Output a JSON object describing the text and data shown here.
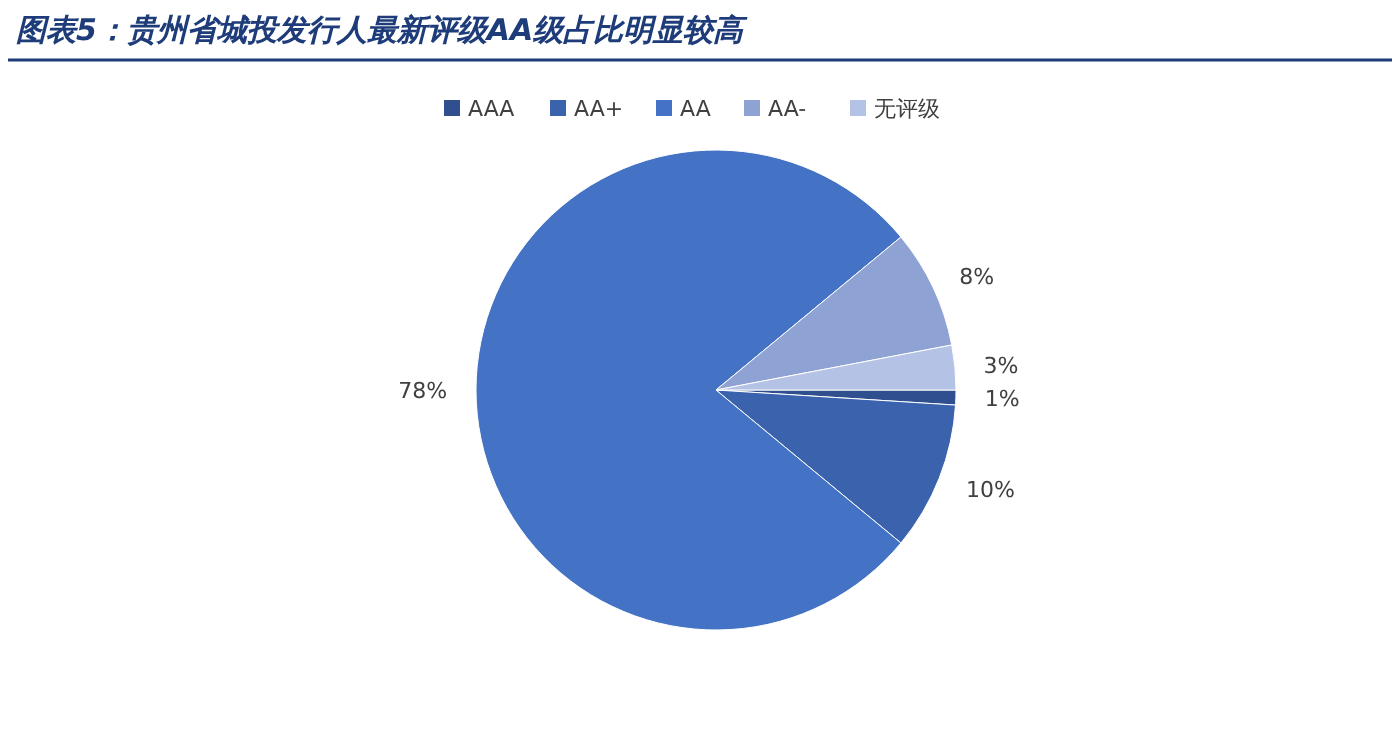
{
  "chart_data": {
    "type": "pie",
    "title": "图表5：贵州省城投发行人最新评级AA级占比明显较高",
    "categories": [
      "AAA",
      "AA+",
      "AA",
      "AA-",
      "无评级"
    ],
    "values": [
      1,
      10,
      78,
      8,
      3
    ],
    "value_labels": [
      "1%",
      "10%",
      "78%",
      "8%",
      "3%"
    ],
    "colors": [
      "#2f4f8f",
      "#3a62ad",
      "#4472c4",
      "#8fa2d4",
      "#b4c2e6"
    ],
    "legend": "top"
  }
}
